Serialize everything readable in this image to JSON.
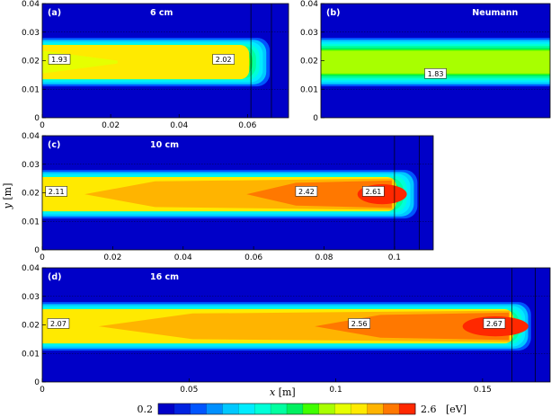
{
  "chart_data": {
    "type": "heatmap",
    "colorbar": {
      "min_label": "0.2",
      "max_label": "2.6",
      "unit": "[eV]",
      "levels": 16,
      "colors": [
        "#0000c8",
        "#0022e0",
        "#0055ff",
        "#0090ff",
        "#00c8ff",
        "#00ecff",
        "#00ffd8",
        "#00ffa0",
        "#00f060",
        "#40ff00",
        "#a8ff00",
        "#e6ff00",
        "#ffea00",
        "#ffb400",
        "#ff7800",
        "#ff2800"
      ]
    },
    "xlabel": "x [m]",
    "ylabel": "y [m]",
    "panels": [
      {
        "tag": "(a)",
        "title": "6 cm",
        "x_ticks": [
          "0",
          "0.02",
          "0.04",
          "0.06"
        ],
        "x_values": [
          0,
          0.02,
          0.04,
          0.06
        ],
        "y_ticks": [
          "0",
          "0.01",
          "0.02",
          "0.03",
          "0.04"
        ],
        "y_values": [
          0,
          0.01,
          0.02,
          0.03,
          0.04
        ],
        "xlim": [
          0,
          0.072
        ],
        "ylim": [
          0,
          0.04
        ],
        "labels": [
          {
            "text": "1.93",
            "x": 0.005,
            "y": 0.0205
          },
          {
            "text": "2.02",
            "x": 0.053,
            "y": 0.0205
          }
        ],
        "plume_end": 0.06,
        "wall_lines": [
          0.061,
          0.067
        ],
        "peak_color_index": 11
      },
      {
        "tag": "(b)",
        "title": "Neumann",
        "x_ticks": [],
        "x_values": [],
        "y_ticks": [
          "0",
          "0.01",
          "0.02",
          "0.03",
          "0.04"
        ],
        "y_values": [
          0,
          0.01,
          0.02,
          0.03,
          0.04
        ],
        "xlim": [
          0,
          0.072
        ],
        "ylim": [
          0,
          0.04
        ],
        "labels": [
          {
            "text": "1.83",
            "x": 0.036,
            "y": 0.0155
          }
        ],
        "plume_end": null,
        "wall_lines": [],
        "peak_color_index": 9
      },
      {
        "tag": "(c)",
        "title": "10 cm",
        "x_ticks": [
          "0",
          "0.02",
          "0.04",
          "0.06",
          "0.08",
          "0.1"
        ],
        "x_values": [
          0,
          0.02,
          0.04,
          0.06,
          0.08,
          0.1
        ],
        "y_ticks": [
          "0",
          "0.01",
          "0.02",
          "0.03",
          "0.04"
        ],
        "y_values": [
          0,
          0.01,
          0.02,
          0.03,
          0.04
        ],
        "xlim": [
          0,
          0.111
        ],
        "ylim": [
          0,
          0.04
        ],
        "labels": [
          {
            "text": "2.11",
            "x": 0.004,
            "y": 0.0205
          },
          {
            "text": "2.42",
            "x": 0.075,
            "y": 0.0205
          },
          {
            "text": "2.61",
            "x": 0.094,
            "y": 0.0205
          }
        ],
        "plume_end": 0.1,
        "wall_lines": [
          0.1,
          0.107
        ],
        "peak_color_index": 15
      },
      {
        "tag": "(d)",
        "title": "16 cm",
        "x_ticks": [
          "0",
          "0.05",
          "0.1",
          "0.15"
        ],
        "x_values": [
          0,
          0.05,
          0.1,
          0.15
        ],
        "y_ticks": [
          "0",
          "0.01",
          "0.02",
          "0.03",
          "0.04"
        ],
        "y_values": [
          0,
          0.01,
          0.02,
          0.03,
          0.04
        ],
        "xlim": [
          0,
          0.173
        ],
        "ylim": [
          0,
          0.04
        ],
        "labels": [
          {
            "text": "2.07",
            "x": 0.0055,
            "y": 0.0205
          },
          {
            "text": "2.56",
            "x": 0.108,
            "y": 0.0205
          },
          {
            "text": "2.67",
            "x": 0.154,
            "y": 0.0205
          }
        ],
        "plume_end": 0.16,
        "wall_lines": [
          0.16,
          0.168
        ],
        "peak_color_index": 15
      }
    ]
  }
}
